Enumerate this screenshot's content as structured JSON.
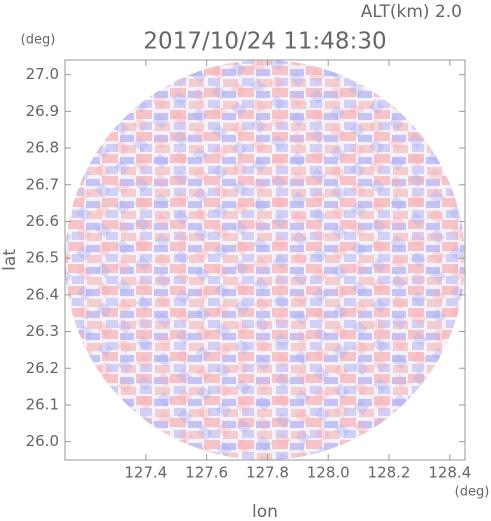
{
  "chart_data": {
    "type": "heatmap",
    "header": "ALT(km) 2.0",
    "title": "2017/10/24 11:48:30",
    "x_label": "lon",
    "y_label": "lat",
    "x_unit": "(deg)",
    "y_unit": "(deg)",
    "xlim": [
      127.134,
      128.45
    ],
    "ylim": [
      25.95,
      27.04
    ],
    "xticks": [
      127.4,
      127.6,
      127.8,
      {
        "value": 128,
        "label": "128.0"
      },
      128.2,
      128.4
    ],
    "yticks": [
      {
        "value": 26,
        "label": "26.0"
      },
      26.1,
      26.2,
      26.3,
      26.4,
      26.5,
      26.6,
      26.7,
      26.8,
      26.9,
      {
        "value": 27,
        "label": "27.0"
      }
    ]
  }
}
